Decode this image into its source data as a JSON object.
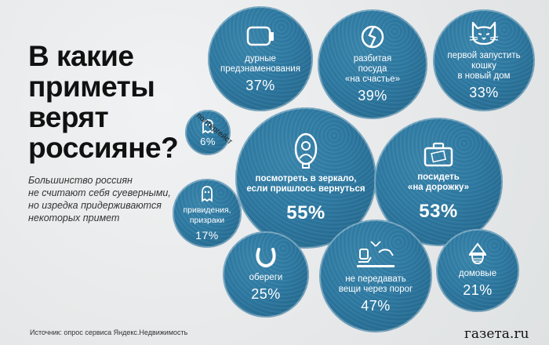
{
  "title": "В какие приметы верят россияне?",
  "subtitle": "Большинство россиян\nне считают себя суеверными,\nно изредка придерживаются\nнекоторых примет",
  "source": "Источник: опрос сервиса Яндекс.Недвижимость",
  "logo": "газета.ru",
  "colors": {
    "bubble": "#2e7aa3",
    "text": "#111111"
  },
  "items": {
    "omens": {
      "label": "дурные\nпредзнаменования",
      "value": "37%",
      "icon": "phone-icon"
    },
    "dishes": {
      "label": "разбитая\nпосуда\n«на счастье»",
      "value": "39%",
      "icon": "broken-plate-icon"
    },
    "cat": {
      "label": "первой запустить\nкошку\nв новый дом",
      "value": "33%",
      "icon": "cat-icon"
    },
    "poltergeist": {
      "label": "полтергейст",
      "value": "6%",
      "icon": "ghost-icon"
    },
    "mirror": {
      "label": "посмотреть в зеркало,\nесли пришлось вернуться",
      "value": "55%",
      "icon": "mirror-icon"
    },
    "sit": {
      "label": "посидеть\n«на дорожку»",
      "value": "53%",
      "icon": "suitcase-icon"
    },
    "ghosts": {
      "label": "привидения,\nпризраки",
      "value": "17%",
      "icon": "ghost-icon"
    },
    "talismans": {
      "label": "обереги",
      "value": "25%",
      "icon": "horseshoe-icon"
    },
    "threshold": {
      "label": "не передавать\nвещи через порог",
      "value": "47%",
      "icon": "handover-icon"
    },
    "domovoi": {
      "label": "домовые",
      "value": "21%",
      "icon": "house-spirit-icon"
    }
  }
}
